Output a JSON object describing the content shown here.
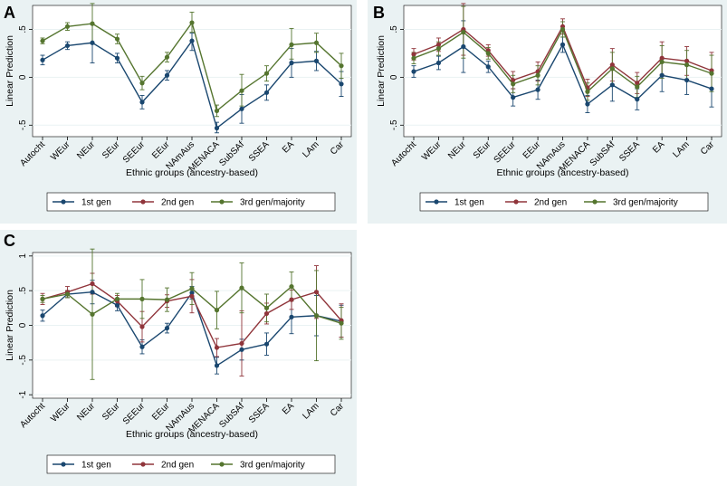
{
  "colors": {
    "panel_bg": "#eaf2f3",
    "plot_bg": "#ffffff",
    "grid": "#eaf2f3",
    "series": [
      "#1a476f",
      "#90353b",
      "#55752f"
    ]
  },
  "chart_data": [
    {
      "panel_label": "A",
      "type": "line",
      "title": "",
      "xlabel": "Ethnic groups (ancestry-based)",
      "ylabel": "Linear Prediction",
      "ylim": [
        -0.62,
        0.75
      ],
      "y_ticks": [
        -0.5,
        0,
        0.5
      ],
      "y_tick_labels": [
        "-.5",
        "0",
        ".5"
      ],
      "categories": [
        "Autocht",
        "WEur",
        "NEur",
        "SEur",
        "SEEur",
        "EEur",
        "NAmAus",
        "MENACA",
        "SubSAf",
        "SSEA",
        "EA",
        "LAm",
        "Car"
      ],
      "legend_position": "bottom",
      "series": [
        {
          "name": "1st gen",
          "values": [
            0.18,
            0.33,
            0.36,
            0.2,
            -0.26,
            0.02,
            0.38,
            -0.53,
            -0.33,
            -0.16,
            0.15,
            0.17,
            -0.07
          ],
          "lower": [
            0.13,
            0.29,
            0.15,
            0.15,
            -0.33,
            -0.03,
            0.28,
            -0.58,
            -0.48,
            -0.24,
            0.0,
            0.07,
            -0.2
          ],
          "upper": [
            0.23,
            0.37,
            0.55,
            0.25,
            -0.19,
            0.07,
            0.46,
            -0.47,
            -0.18,
            -0.08,
            0.3,
            0.27,
            0.06
          ]
        },
        {
          "name": "3rd gen/majority",
          "values": [
            0.38,
            0.53,
            0.56,
            0.4,
            -0.06,
            0.21,
            0.57,
            -0.35,
            -0.14,
            0.04,
            0.34,
            0.36,
            0.12
          ],
          "lower": [
            0.35,
            0.49,
            0.35,
            0.35,
            -0.13,
            0.16,
            0.47,
            -0.41,
            -0.3,
            -0.04,
            0.19,
            0.26,
            -0.01
          ],
          "upper": [
            0.41,
            0.57,
            0.77,
            0.45,
            0.01,
            0.26,
            0.68,
            -0.29,
            0.03,
            0.12,
            0.51,
            0.46,
            0.25
          ]
        }
      ]
    },
    {
      "panel_label": "B",
      "type": "line",
      "title": "",
      "xlabel": "Ethnic groups (ancestry-based)",
      "ylabel": "Linear Prediction",
      "ylim": [
        -0.62,
        0.75
      ],
      "y_ticks": [
        -0.5,
        0,
        0.5
      ],
      "y_tick_labels": [
        "-.5",
        "0",
        ".5"
      ],
      "categories": [
        "Autocht",
        "WEur",
        "NEur",
        "SEur",
        "SEEur",
        "EEur",
        "NAmAus",
        "MENACA",
        "SubSAf",
        "SSEA",
        "EA",
        "LAm",
        "Car"
      ],
      "legend_position": "bottom",
      "series": [
        {
          "name": "1st gen",
          "values": [
            0.06,
            0.15,
            0.32,
            0.11,
            -0.21,
            -0.13,
            0.34,
            -0.28,
            -0.08,
            -0.23,
            0.02,
            -0.03,
            -0.12
          ],
          "lower": [
            0.0,
            0.08,
            0.05,
            0.05,
            -0.3,
            -0.23,
            0.26,
            -0.37,
            -0.25,
            -0.34,
            -0.15,
            -0.18,
            -0.31
          ],
          "upper": [
            0.12,
            0.22,
            0.59,
            0.17,
            -0.12,
            -0.03,
            0.42,
            -0.19,
            0.09,
            -0.12,
            0.19,
            0.12,
            0.07
          ]
        },
        {
          "name": "2nd gen",
          "values": [
            0.24,
            0.34,
            0.5,
            0.28,
            -0.03,
            0.06,
            0.53,
            -0.11,
            0.13,
            -0.06,
            0.2,
            0.17,
            0.07
          ],
          "lower": [
            0.18,
            0.27,
            0.23,
            0.22,
            -0.12,
            -0.04,
            0.45,
            -0.2,
            -0.04,
            -0.17,
            0.03,
            0.02,
            -0.12
          ],
          "upper": [
            0.3,
            0.41,
            0.77,
            0.34,
            0.06,
            0.16,
            0.61,
            -0.02,
            0.3,
            0.05,
            0.37,
            0.32,
            0.26
          ]
        },
        {
          "name": "3rd gen/majority",
          "values": [
            0.2,
            0.3,
            0.47,
            0.25,
            -0.07,
            0.02,
            0.5,
            -0.15,
            0.09,
            -0.1,
            0.16,
            0.13,
            0.04
          ],
          "lower": [
            0.14,
            0.23,
            0.2,
            0.19,
            -0.16,
            -0.08,
            0.42,
            -0.24,
            -0.08,
            -0.21,
            -0.01,
            -0.02,
            -0.15
          ],
          "upper": [
            0.26,
            0.37,
            0.74,
            0.31,
            0.02,
            0.12,
            0.58,
            -0.06,
            0.26,
            0.01,
            0.33,
            0.28,
            0.23
          ]
        }
      ]
    },
    {
      "panel_label": "C",
      "type": "line",
      "title": "",
      "xlabel": "Ethnic groups (ancestry-based)",
      "ylabel": "Linear Prediction",
      "ylim": [
        -1.05,
        1.05
      ],
      "y_ticks": [
        -1,
        -0.5,
        0,
        0.5,
        1
      ],
      "y_tick_labels": [
        "-1",
        "-.5",
        "0",
        ".5",
        "1"
      ],
      "categories": [
        "Autocht",
        "WEur",
        "NEur",
        "SEur",
        "SEEur",
        "EEur",
        "NAmAus",
        "MENACA",
        "SubSAf",
        "SSEA",
        "EA",
        "LAm",
        "Car"
      ],
      "legend_position": "bottom",
      "series": [
        {
          "name": "1st gen",
          "values": [
            0.14,
            0.45,
            0.48,
            0.29,
            -0.31,
            -0.04,
            0.47,
            -0.58,
            -0.35,
            -0.27,
            0.12,
            0.14,
            0.06
          ],
          "lower": [
            0.06,
            0.4,
            0.31,
            0.21,
            -0.41,
            -0.11,
            0.38,
            -0.7,
            -0.5,
            -0.43,
            -0.12,
            -0.15,
            -0.17
          ],
          "upper": [
            0.22,
            0.5,
            0.65,
            0.37,
            -0.21,
            0.03,
            0.56,
            -0.46,
            -0.2,
            -0.11,
            0.36,
            0.43,
            0.29
          ]
        },
        {
          "name": "2nd gen",
          "values": [
            0.38,
            0.48,
            0.6,
            0.35,
            -0.02,
            0.35,
            0.42,
            -0.32,
            -0.26,
            0.17,
            0.37,
            0.48,
            0.07
          ],
          "lower": [
            0.3,
            0.4,
            0.45,
            0.27,
            -0.24,
            0.26,
            0.18,
            -0.45,
            -0.73,
            0.02,
            0.23,
            0.1,
            -0.17
          ],
          "upper": [
            0.46,
            0.56,
            0.75,
            0.43,
            0.2,
            0.44,
            0.66,
            -0.19,
            0.21,
            0.32,
            0.51,
            0.86,
            0.31
          ]
        },
        {
          "name": "3rd gen/majority",
          "values": [
            0.38,
            0.45,
            0.16,
            0.38,
            0.38,
            0.37,
            0.53,
            0.22,
            0.54,
            0.25,
            0.56,
            0.14,
            0.03
          ],
          "lower": [
            0.33,
            0.4,
            -0.78,
            0.3,
            0.1,
            0.2,
            0.3,
            -0.05,
            0.18,
            0.05,
            0.35,
            -0.51,
            -0.2
          ],
          "upper": [
            0.43,
            0.5,
            1.1,
            0.46,
            0.66,
            0.54,
            0.76,
            0.49,
            0.9,
            0.45,
            0.77,
            0.79,
            0.26
          ]
        }
      ]
    }
  ]
}
